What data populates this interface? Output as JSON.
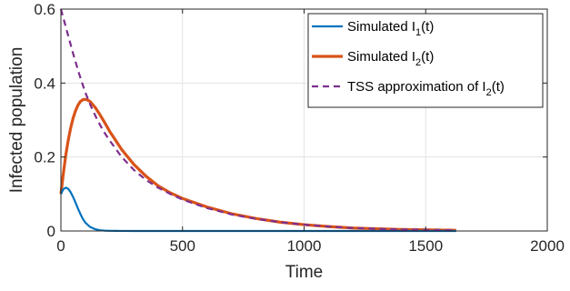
{
  "chart_data": {
    "type": "line",
    "xlabel": "Time",
    "ylabel": "Infected population",
    "xlim": [
      0,
      2000
    ],
    "ylim": [
      0,
      0.6
    ],
    "xticks": [
      0,
      500,
      1000,
      1500,
      2000
    ],
    "yticks": [
      0,
      0.2,
      0.4,
      0.6
    ],
    "xtick_labels": [
      "0",
      "500",
      "1000",
      "1500",
      "2000"
    ],
    "ytick_labels": [
      "0",
      "0.2",
      "0.4",
      "0.6"
    ],
    "grid": true,
    "legend_position": "top-right",
    "series": [
      {
        "name": "Simulated I1(t)",
        "legend_main": "Simulated I",
        "legend_sub": "1",
        "legend_tail": "(t)",
        "color": "#0072BD",
        "style": "solid",
        "x": [
          0,
          10,
          20,
          30,
          40,
          50,
          60,
          70,
          80,
          90,
          100,
          120,
          140,
          160,
          180,
          200,
          250,
          300,
          400,
          600,
          800,
          1000,
          1200,
          1400,
          1625
        ],
        "y": [
          0.1,
          0.113,
          0.117,
          0.114,
          0.105,
          0.092,
          0.077,
          0.061,
          0.046,
          0.033,
          0.023,
          0.011,
          0.005,
          0.002,
          0.001,
          0.0005,
          0.0001,
          0,
          0,
          0,
          0,
          0,
          0,
          0,
          0
        ]
      },
      {
        "name": "Simulated I2(t)",
        "legend_main": "Simulated I",
        "legend_sub": "2",
        "legend_tail": "(t)",
        "color": "#D95319",
        "style": "solid-thick",
        "x": [
          0,
          10,
          20,
          30,
          40,
          50,
          60,
          70,
          80,
          90,
          100,
          110,
          120,
          140,
          160,
          180,
          200,
          250,
          300,
          350,
          400,
          450,
          500,
          600,
          700,
          800,
          900,
          1000,
          1100,
          1200,
          1300,
          1400,
          1500,
          1625
        ],
        "y": [
          0.1,
          0.155,
          0.205,
          0.245,
          0.278,
          0.305,
          0.325,
          0.34,
          0.35,
          0.355,
          0.356,
          0.354,
          0.35,
          0.335,
          0.315,
          0.293,
          0.27,
          0.22,
          0.18,
          0.148,
          0.122,
          0.103,
          0.088,
          0.065,
          0.047,
          0.034,
          0.024,
          0.017,
          0.012,
          0.008,
          0.006,
          0.004,
          0.003,
          0.002
        ]
      },
      {
        "name": "TSS approximation of I2(t)",
        "legend_main": "TSS approximation of I",
        "legend_sub": "2",
        "legend_tail": "(t)",
        "color": "#7E2F8E",
        "style": "dashed",
        "x": [
          0,
          25,
          50,
          75,
          100,
          125,
          150,
          175,
          200,
          250,
          300,
          350,
          400,
          450,
          500,
          600,
          700,
          800,
          900,
          1000,
          1100,
          1200,
          1300,
          1400,
          1500,
          1625
        ],
        "y": [
          0.6,
          0.54,
          0.48,
          0.425,
          0.375,
          0.335,
          0.3,
          0.27,
          0.245,
          0.2,
          0.165,
          0.138,
          0.117,
          0.1,
          0.085,
          0.062,
          0.045,
          0.033,
          0.024,
          0.017,
          0.012,
          0.008,
          0.006,
          0.004,
          0.003,
          0.002
        ]
      }
    ]
  }
}
